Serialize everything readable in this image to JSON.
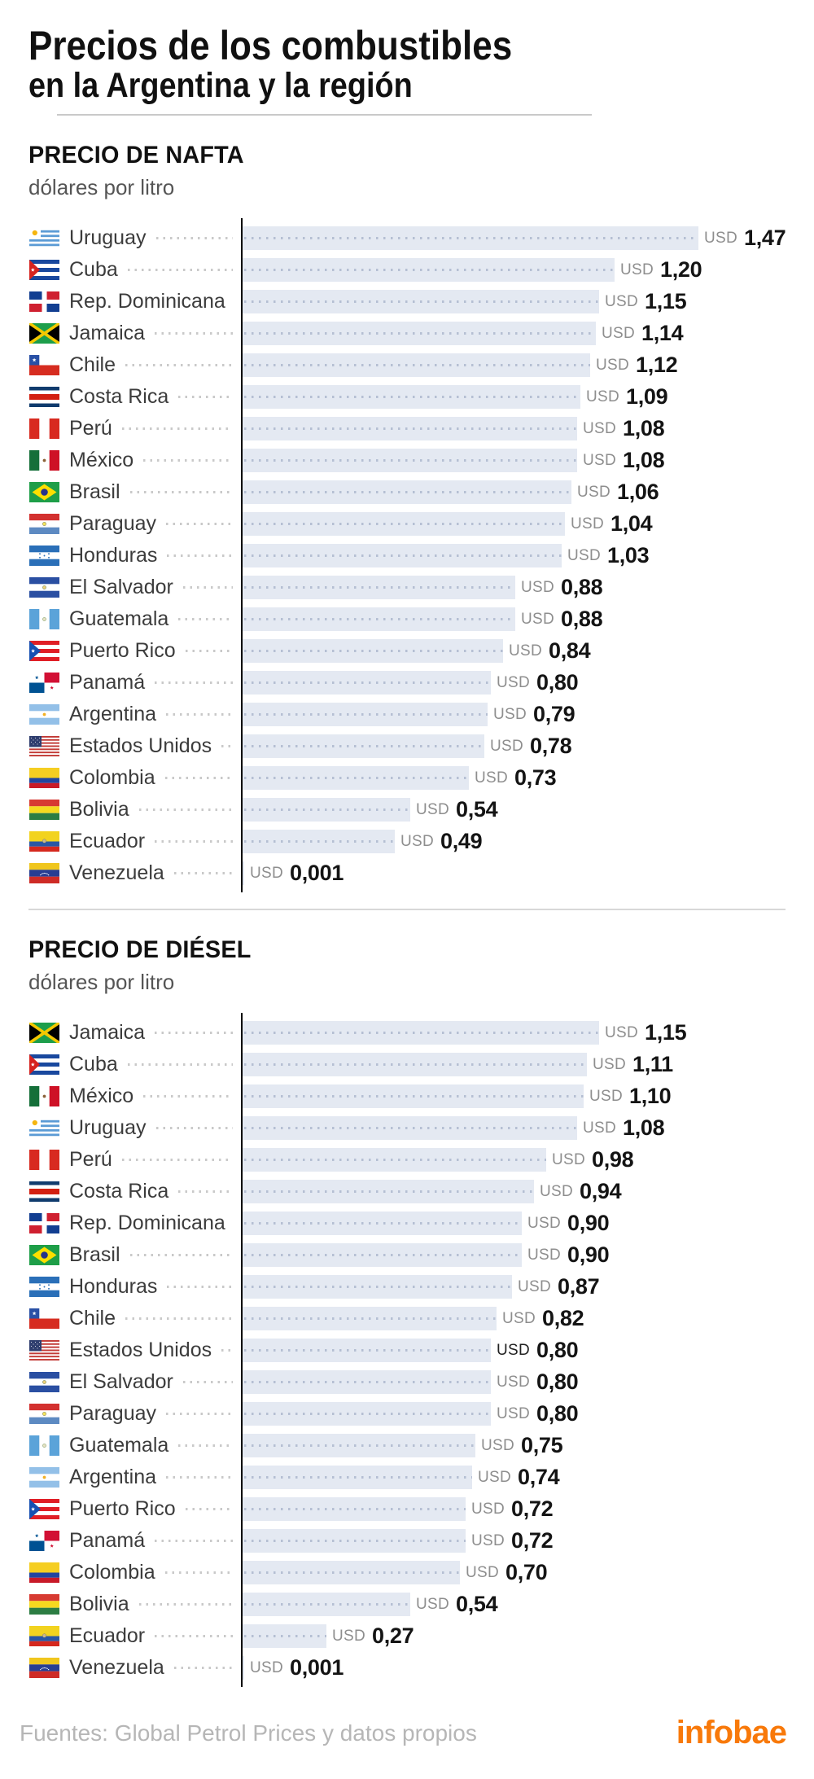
{
  "title": {
    "line1": "Precios de los combustibles",
    "line2": "en la Argentina y la región"
  },
  "colors": {
    "bar_fill": "#e4e9f2",
    "bar_dots": "#b5bfd3",
    "leader_dots": "#c9c9c9",
    "axis": "#000000",
    "usd_label": "#8e8e8e",
    "value_text": "#141414",
    "brand_orange": "#f8790a"
  },
  "chart_data": [
    {
      "type": "bar",
      "orientation": "horizontal",
      "title": "PRECIO DE NAFTA",
      "subtitle": "dólares por litro",
      "unit": "USD",
      "x_range": [
        0,
        1.47
      ],
      "rows": [
        {
          "label": "Uruguay",
          "flag": "uruguay",
          "value": 1.47,
          "display": "1,47"
        },
        {
          "label": "Cuba",
          "flag": "cuba",
          "value": 1.2,
          "display": "1,20"
        },
        {
          "label": "Rep. Dominicana",
          "flag": "dominicana",
          "value": 1.15,
          "display": "1,15"
        },
        {
          "label": "Jamaica",
          "flag": "jamaica",
          "value": 1.14,
          "display": "1,14"
        },
        {
          "label": "Chile",
          "flag": "chile",
          "value": 1.12,
          "display": "1,12"
        },
        {
          "label": "Costa Rica",
          "flag": "costarica",
          "value": 1.09,
          "display": "1,09"
        },
        {
          "label": "Perú",
          "flag": "peru",
          "value": 1.08,
          "display": "1,08"
        },
        {
          "label": "México",
          "flag": "mexico",
          "value": 1.08,
          "display": "1,08"
        },
        {
          "label": "Brasil",
          "flag": "brasil",
          "value": 1.06,
          "display": "1,06"
        },
        {
          "label": "Paraguay",
          "flag": "paraguay",
          "value": 1.04,
          "display": "1,04"
        },
        {
          "label": "Honduras",
          "flag": "honduras",
          "value": 1.03,
          "display": "1,03"
        },
        {
          "label": "El Salvador",
          "flag": "elsalvador",
          "value": 0.88,
          "display": "0,88"
        },
        {
          "label": "Guatemala",
          "flag": "guatemala",
          "value": 0.88,
          "display": "0,88"
        },
        {
          "label": "Puerto Rico",
          "flag": "puertorico",
          "value": 0.84,
          "display": "0,84"
        },
        {
          "label": "Panamá",
          "flag": "panama",
          "value": 0.8,
          "display": "0,80"
        },
        {
          "label": "Argentina",
          "flag": "argentina",
          "value": 0.79,
          "display": "0,79"
        },
        {
          "label": "Estados Unidos",
          "flag": "usa",
          "value": 0.78,
          "display": "0,78"
        },
        {
          "label": "Colombia",
          "flag": "colombia",
          "value": 0.73,
          "display": "0,73"
        },
        {
          "label": "Bolivia",
          "flag": "bolivia",
          "value": 0.54,
          "display": "0,54"
        },
        {
          "label": "Ecuador",
          "flag": "ecuador",
          "value": 0.49,
          "display": "0,49"
        },
        {
          "label": "Venezuela",
          "flag": "venezuela",
          "value": 0.001,
          "display": "0,001"
        }
      ]
    },
    {
      "type": "bar",
      "orientation": "horizontal",
      "title": "PRECIO DE DIÉSEL",
      "subtitle": "dólares por litro",
      "unit": "USD",
      "x_range": [
        0,
        1.15
      ],
      "rows": [
        {
          "label": "Jamaica",
          "flag": "jamaica",
          "value": 1.15,
          "display": "1,15"
        },
        {
          "label": "Cuba",
          "flag": "cuba",
          "value": 1.11,
          "display": "1,11"
        },
        {
          "label": "México",
          "flag": "mexico",
          "value": 1.1,
          "display": "1,10"
        },
        {
          "label": "Uruguay",
          "flag": "uruguay",
          "value": 1.08,
          "display": "1,08"
        },
        {
          "label": "Perú",
          "flag": "peru",
          "value": 0.98,
          "display": "0,98"
        },
        {
          "label": "Costa Rica",
          "flag": "costarica",
          "value": 0.94,
          "display": "0,94"
        },
        {
          "label": "Rep. Dominicana",
          "flag": "dominicana",
          "value": 0.9,
          "display": "0,90"
        },
        {
          "label": "Brasil",
          "flag": "brasil",
          "value": 0.9,
          "display": "0,90"
        },
        {
          "label": "Honduras",
          "flag": "honduras",
          "value": 0.87,
          "display": "0,87"
        },
        {
          "label": "Chile",
          "flag": "chile",
          "value": 0.82,
          "display": "0,82"
        },
        {
          "label": "Estados Unidos",
          "flag": "usa",
          "value": 0.8,
          "display": "0,80",
          "usd_dark": true
        },
        {
          "label": "El Salvador",
          "flag": "elsalvador",
          "value": 0.8,
          "display": "0,80"
        },
        {
          "label": "Paraguay",
          "flag": "paraguay",
          "value": 0.8,
          "display": "0,80"
        },
        {
          "label": "Guatemala",
          "flag": "guatemala",
          "value": 0.75,
          "display": "0,75"
        },
        {
          "label": "Argentina",
          "flag": "argentina",
          "value": 0.74,
          "display": "0,74"
        },
        {
          "label": "Puerto Rico",
          "flag": "puertorico",
          "value": 0.72,
          "display": "0,72"
        },
        {
          "label": "Panamá",
          "flag": "panama",
          "value": 0.72,
          "display": "0,72"
        },
        {
          "label": "Colombia",
          "flag": "colombia",
          "value": 0.7,
          "display": "0,70"
        },
        {
          "label": "Bolivia",
          "flag": "bolivia",
          "value": 0.54,
          "display": "0,54"
        },
        {
          "label": "Ecuador",
          "flag": "ecuador",
          "value": 0.27,
          "display": "0,27"
        },
        {
          "label": "Venezuela",
          "flag": "venezuela",
          "value": 0.001,
          "display": "0,001"
        }
      ]
    }
  ],
  "footer": {
    "source": "Fuentes: Global Petrol Prices y datos propios",
    "brand": "infobae"
  }
}
